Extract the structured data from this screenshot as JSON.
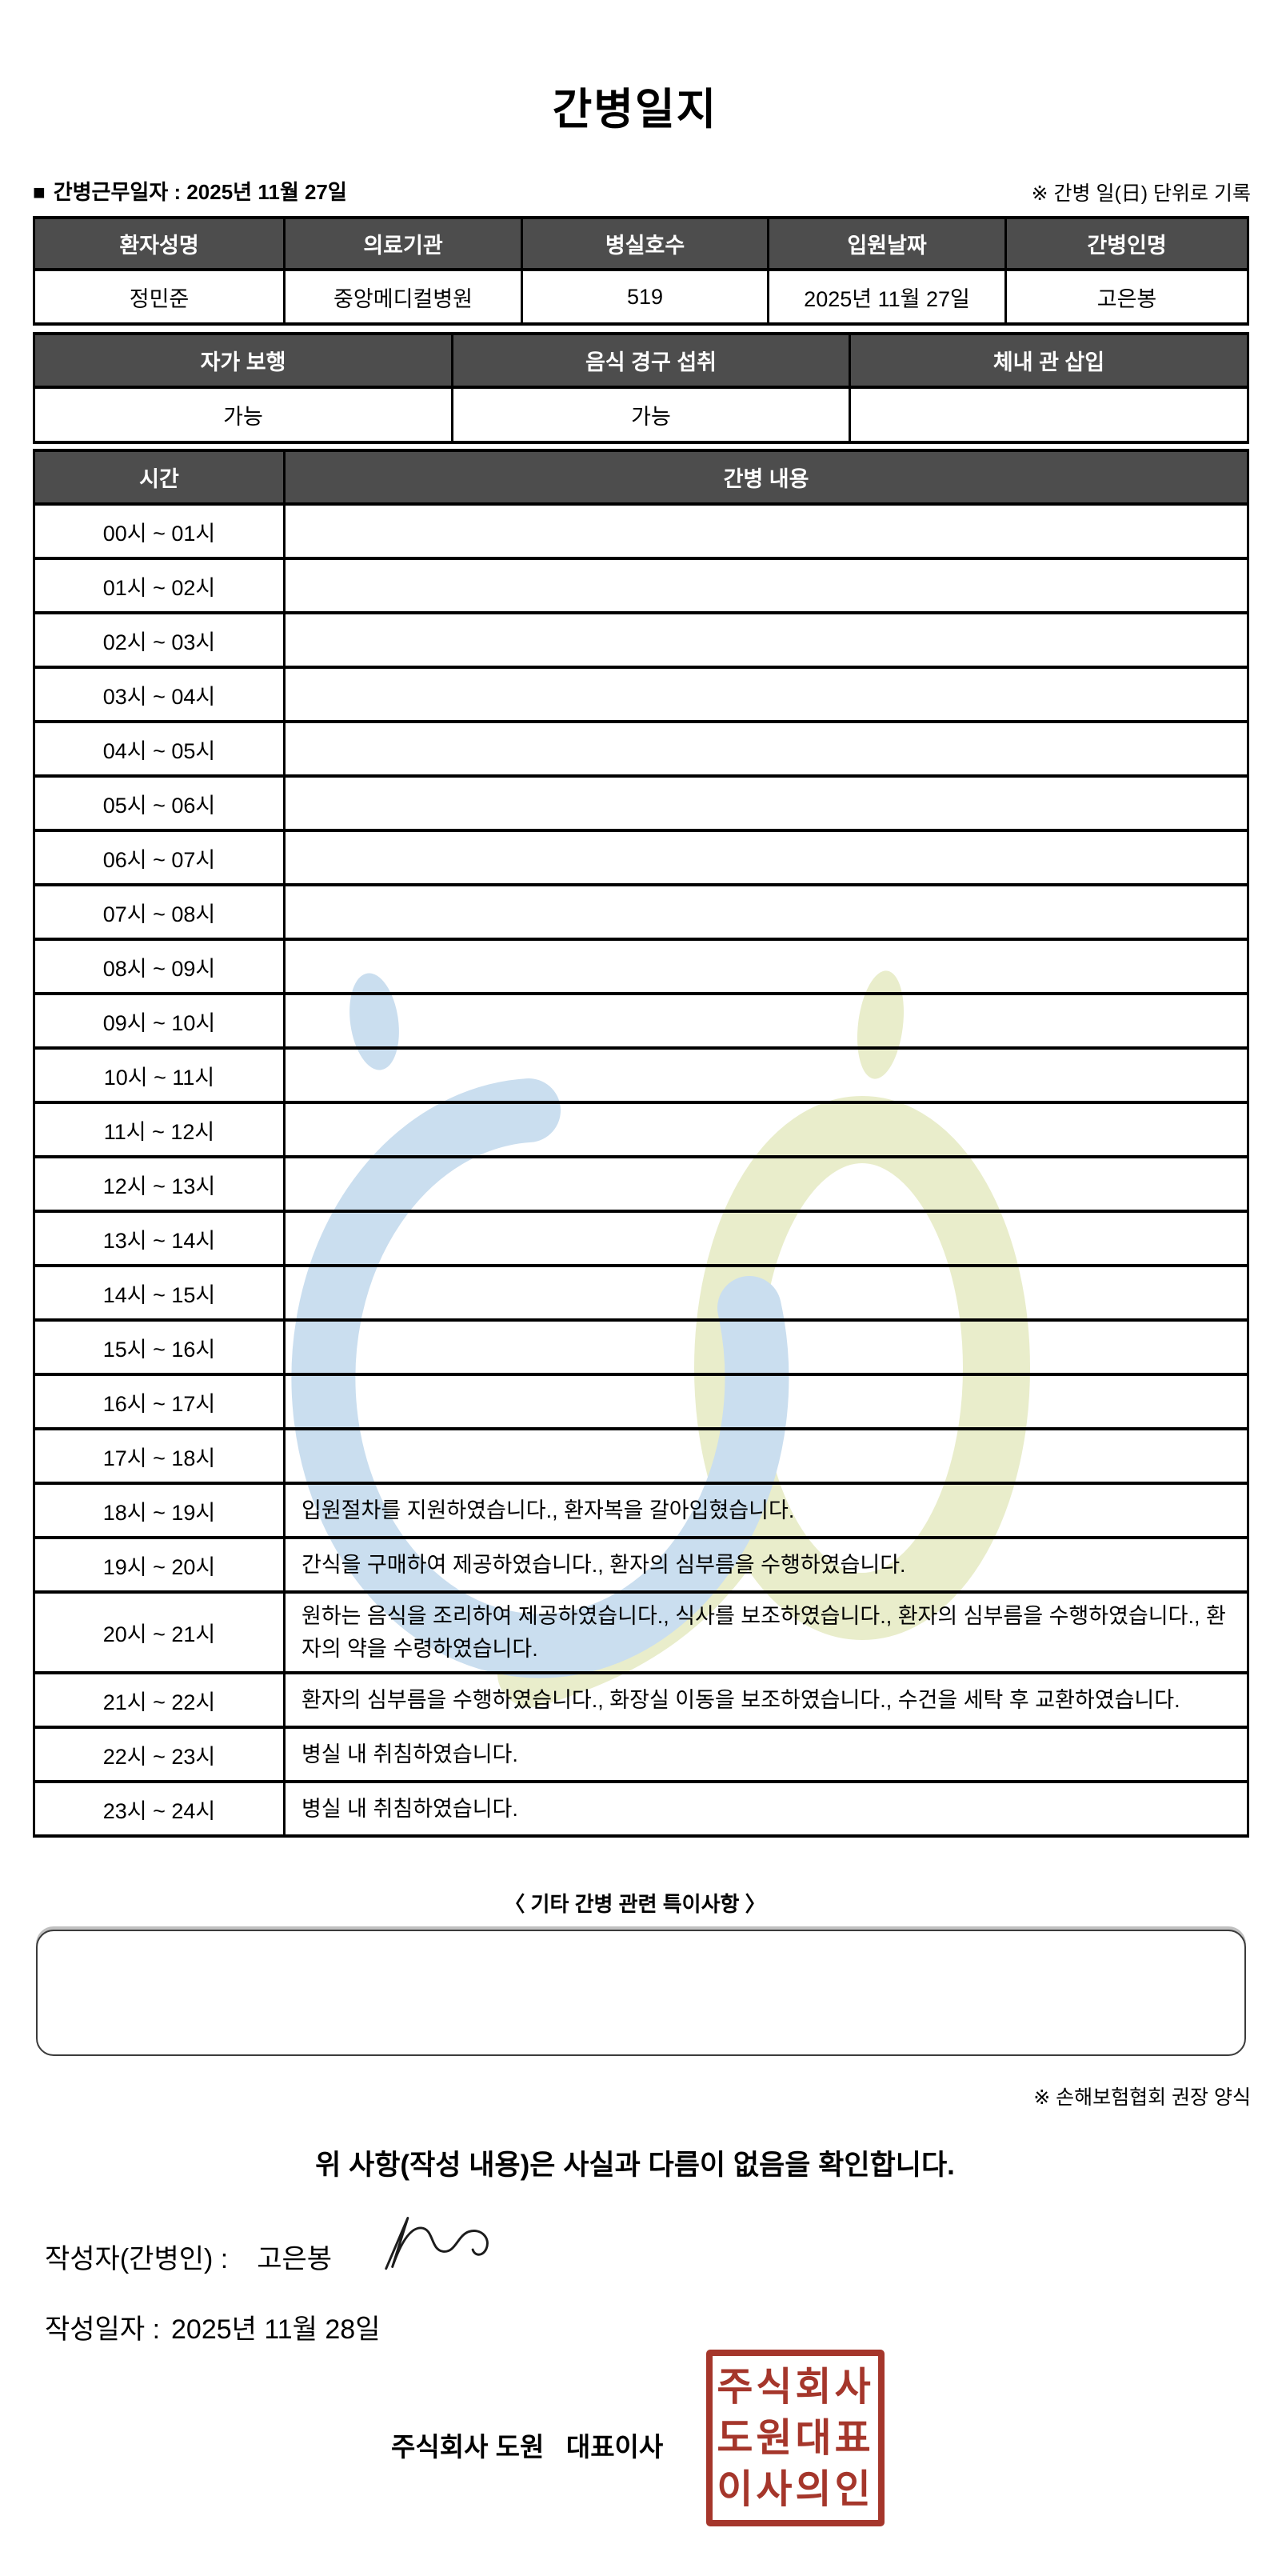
{
  "title": "간병일지",
  "meta": {
    "bullet": "■",
    "work_date_line": "간병근무일자 :  2025년 11월 27일",
    "unit_note": "※ 간병 일(日) 단위로 기록"
  },
  "info_table": {
    "headers": [
      "환자성명",
      "의료기관",
      "병실호수",
      "입원날짜",
      "간병인명"
    ],
    "values": [
      "정민준",
      "중앙메디컬병원",
      "519",
      "2025년 11월 27일",
      "고은봉"
    ]
  },
  "status_table": {
    "headers": [
      "자가 보행",
      "음식 경구 섭취",
      "체내 관 삽입"
    ],
    "values": [
      "가능",
      "가능",
      ""
    ]
  },
  "care_table": {
    "time_header": "시간",
    "content_header": "간병 내용",
    "rows": [
      {
        "time": "00시 ~ 01시",
        "content": ""
      },
      {
        "time": "01시 ~ 02시",
        "content": ""
      },
      {
        "time": "02시 ~ 03시",
        "content": ""
      },
      {
        "time": "03시 ~ 04시",
        "content": ""
      },
      {
        "time": "04시 ~ 05시",
        "content": ""
      },
      {
        "time": "05시 ~ 06시",
        "content": ""
      },
      {
        "time": "06시 ~ 07시",
        "content": ""
      },
      {
        "time": "07시 ~ 08시",
        "content": ""
      },
      {
        "time": "08시 ~ 09시",
        "content": ""
      },
      {
        "time": "09시 ~ 10시",
        "content": ""
      },
      {
        "time": "10시 ~ 11시",
        "content": ""
      },
      {
        "time": "11시 ~ 12시",
        "content": ""
      },
      {
        "time": "12시 ~ 13시",
        "content": ""
      },
      {
        "time": "13시 ~ 14시",
        "content": ""
      },
      {
        "time": "14시 ~ 15시",
        "content": ""
      },
      {
        "time": "15시 ~ 16시",
        "content": ""
      },
      {
        "time": "16시 ~ 17시",
        "content": ""
      },
      {
        "time": "17시 ~ 18시",
        "content": ""
      },
      {
        "time": "18시 ~ 19시",
        "content": "입원절차를 지원하였습니다., 환자복을 갈아입혔습니다."
      },
      {
        "time": "19시 ~ 20시",
        "content": "간식을 구매하여 제공하였습니다., 환자의 심부름을 수행하였습니다."
      },
      {
        "time": "20시 ~ 21시",
        "content": "원하는 음식을 조리하여 제공하였습니다., 식사를 보조하였습니다., 환자의 심부름을 수행하였습니다., 환자의 약을 수령하였습니다."
      },
      {
        "time": "21시 ~ 22시",
        "content": "환자의 심부름을 수행하였습니다., 화장실 이동을 보조하였습니다., 수건을 세탁 후 교환하였습니다."
      },
      {
        "time": "22시 ~ 23시",
        "content": "병실 내 취침하였습니다."
      },
      {
        "time": "23시 ~ 24시",
        "content": "병실 내 취침하였습니다."
      }
    ]
  },
  "notes": {
    "heading": "〈 기타 간병 관련 특이사항 〉",
    "value": ""
  },
  "footer": {
    "form_note": "※ 손해보험협회 권장 양식",
    "confirmation": "위 사항(작성 내용)은 사실과 다름이 없음을 확인합니다.",
    "writer_label": "작성자(간병인) :",
    "writer_name": "고은봉",
    "write_date_label": "작성일자 :",
    "write_date_value": "2025년 11월 28일",
    "company_line": "주식회사 도원   대표이사"
  },
  "stamp": {
    "lines": [
      "주식회사",
      "도원대표",
      "이사의인"
    ]
  },
  "colors": {
    "table_header_bg": "#4d4d4d",
    "table_header_text": "#ffffff",
    "border_black": "#000000",
    "stamp_red": "#a5362b",
    "watermark_blue": "#cadeef",
    "watermark_green": "#e9edcb"
  }
}
